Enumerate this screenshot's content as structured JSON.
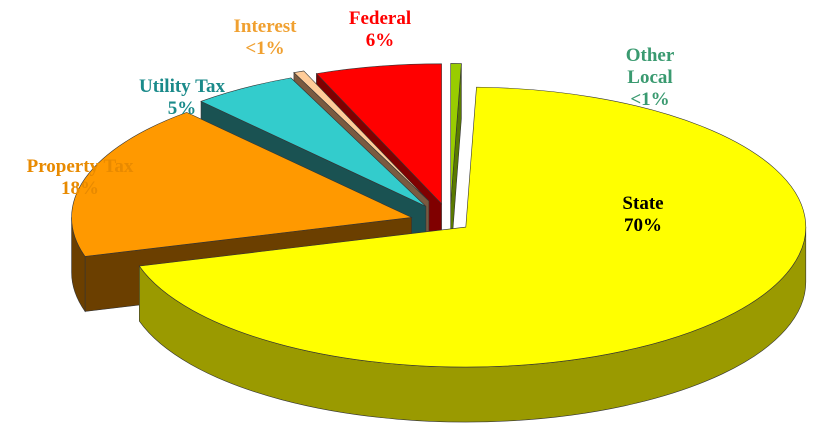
{
  "chart_data": {
    "type": "pie3d",
    "categories": [
      "Other Local",
      "State",
      "Property Tax",
      "Utility Tax",
      "Interest",
      "Federal"
    ],
    "values": [
      0.5,
      70,
      18,
      5,
      0.5,
      6
    ],
    "value_labels": [
      "<1%",
      "70%",
      "18%",
      "5%",
      "<1%",
      "6%"
    ],
    "colors": [
      "#99cc00",
      "#ffff00",
      "#ff9900",
      "#33cccc",
      "#ffcc99",
      "#ff0000"
    ],
    "side_colors": [
      "#5a7a00",
      "#9a9a00",
      "#6b3f00",
      "#1a5252",
      "#7a5a40",
      "#800000"
    ],
    "label_colors": [
      "#3a9a70",
      "#000000",
      "#e88a00",
      "#1a8a8a",
      "#f0a030",
      "#ff0000"
    ]
  }
}
